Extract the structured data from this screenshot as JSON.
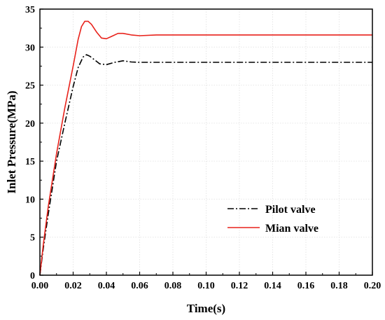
{
  "chart_data": {
    "type": "line",
    "xlabel": "Time(s)",
    "ylabel": "Inlet Pressure(MPa)",
    "xlim": [
      0,
      0.2
    ],
    "ylim": [
      0,
      35
    ],
    "x_ticks": [
      "0.00",
      "0.02",
      "0.04",
      "0.06",
      "0.08",
      "0.10",
      "0.12",
      "0.14",
      "0.16",
      "0.18",
      "0.20"
    ],
    "y_ticks": [
      "0",
      "5",
      "10",
      "15",
      "20",
      "25",
      "30",
      "35"
    ],
    "grid": true,
    "legend_position": "lower-right",
    "series": [
      {
        "name": "Pilot valve",
        "color": "#000000",
        "style": "dash-dot",
        "points": [
          [
            0,
            0
          ],
          [
            0.002,
            3.5
          ],
          [
            0.005,
            8
          ],
          [
            0.01,
            15
          ],
          [
            0.015,
            20
          ],
          [
            0.02,
            24.8
          ],
          [
            0.023,
            27.3
          ],
          [
            0.026,
            28.7
          ],
          [
            0.028,
            29.0
          ],
          [
            0.03,
            28.8
          ],
          [
            0.033,
            28.3
          ],
          [
            0.036,
            27.8
          ],
          [
            0.04,
            27.7
          ],
          [
            0.045,
            28.0
          ],
          [
            0.05,
            28.2
          ],
          [
            0.055,
            28.05
          ],
          [
            0.06,
            28.0
          ],
          [
            0.08,
            28.0
          ],
          [
            0.1,
            28.0
          ],
          [
            0.15,
            28.0
          ],
          [
            0.2,
            28.0
          ]
        ]
      },
      {
        "name": "Mian valve",
        "color": "#e8221b",
        "style": "solid",
        "points": [
          [
            0,
            0
          ],
          [
            0.002,
            4
          ],
          [
            0.005,
            9
          ],
          [
            0.01,
            16
          ],
          [
            0.015,
            22
          ],
          [
            0.02,
            27.5
          ],
          [
            0.023,
            31.0
          ],
          [
            0.025,
            32.7
          ],
          [
            0.027,
            33.4
          ],
          [
            0.029,
            33.4
          ],
          [
            0.031,
            33.0
          ],
          [
            0.034,
            32.0
          ],
          [
            0.037,
            31.2
          ],
          [
            0.04,
            31.1
          ],
          [
            0.043,
            31.4
          ],
          [
            0.047,
            31.8
          ],
          [
            0.05,
            31.8
          ],
          [
            0.055,
            31.6
          ],
          [
            0.06,
            31.5
          ],
          [
            0.07,
            31.6
          ],
          [
            0.08,
            31.6
          ],
          [
            0.1,
            31.6
          ],
          [
            0.15,
            31.6
          ],
          [
            0.2,
            31.6
          ]
        ]
      }
    ]
  }
}
